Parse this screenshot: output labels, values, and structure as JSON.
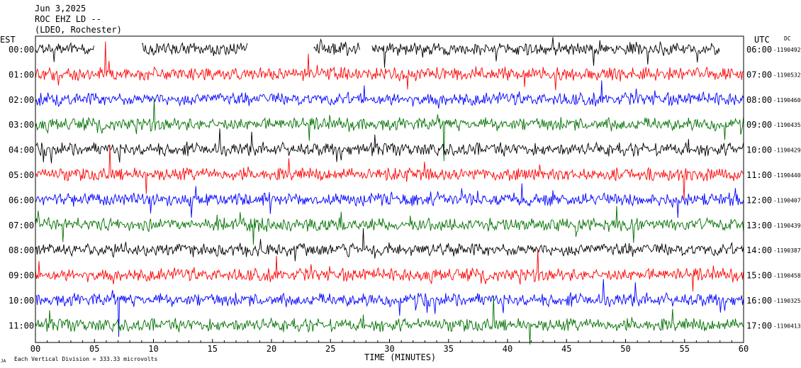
{
  "header": {
    "date": "Jun 3,2025",
    "station": "ROC EHZ LD --",
    "network": "(LDEO, Rochester)"
  },
  "chart_data": {
    "type": "line",
    "title": "",
    "left_axis_title": "EST",
    "right_axis_title": "UTC",
    "right_top_label": "DC",
    "xlabel": "TIME (MINUTES)",
    "xlim": [
      0,
      60
    ],
    "x_tick_labels": [
      "00",
      "05",
      "10",
      "15",
      "20",
      "25",
      "30",
      "35",
      "40",
      "45",
      "50",
      "55",
      "60"
    ],
    "trace_colors": [
      "#000000",
      "#ff0000",
      "#0000ff",
      "#007000"
    ],
    "rows": [
      {
        "est": "00:00",
        "utc": "06:00",
        "dc": "-1190492"
      },
      {
        "est": "01:00",
        "utc": "07:00",
        "dc": "-1190532"
      },
      {
        "est": "02:00",
        "utc": "08:00",
        "dc": "-1190460"
      },
      {
        "est": "03:00",
        "utc": "09:00",
        "dc": "-1190435"
      },
      {
        "est": "04:00",
        "utc": "10:00",
        "dc": "-1190429"
      },
      {
        "est": "05:00",
        "utc": "11:00",
        "dc": "-1190440"
      },
      {
        "est": "06:00",
        "utc": "12:00",
        "dc": "-1190407"
      },
      {
        "est": "07:00",
        "utc": "13:00",
        "dc": "-1190439"
      },
      {
        "est": "08:00",
        "utc": "14:00",
        "dc": "-1190387"
      },
      {
        "est": "09:00",
        "utc": "15:00",
        "dc": "-1190458"
      },
      {
        "est": "10:00",
        "utc": "16:00",
        "dc": "-1190325"
      },
      {
        "est": "11:00",
        "utc": "17:00",
        "dc": "-1190413"
      }
    ],
    "first_trace_gaps_minutes": [
      [
        5,
        9
      ],
      [
        18,
        23.5
      ],
      [
        27.5,
        28.5
      ]
    ],
    "first_trace_end_minute": 58,
    "scale_note": "Each Vertical Division = 333.33 microvolts",
    "corner_mark": "JA",
    "grid": false
  }
}
